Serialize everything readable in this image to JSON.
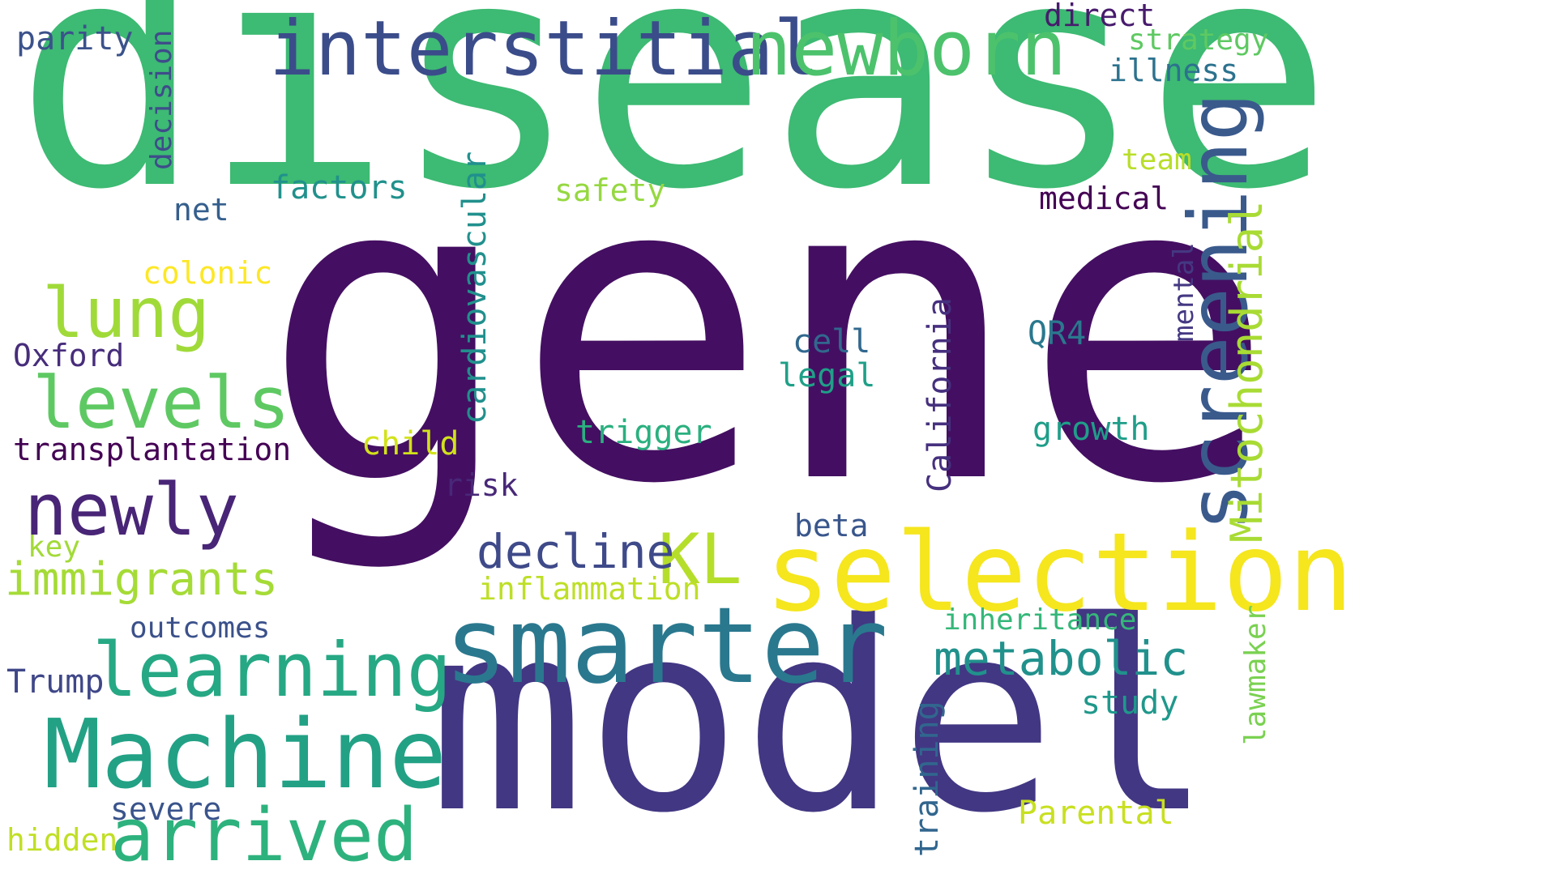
{
  "words": {
    "gene": {
      "text": "gene",
      "color": "#440f62"
    },
    "disease": {
      "text": "disease",
      "color": "#3dba73"
    },
    "model": {
      "text": "model",
      "color": "#423783"
    },
    "selection": {
      "text": "selection",
      "color": "#f5e61e"
    },
    "smarter": {
      "text": "smarter",
      "color": "#2a788e"
    },
    "machine": {
      "text": "Machine",
      "color": "#22a185"
    },
    "interstitial": {
      "text": "interstitial",
      "color": "#3b4c8a"
    },
    "newborn": {
      "text": "newborn",
      "color": "#4cc26c"
    },
    "screening": {
      "text": "screening",
      "color": "#3a5a8c"
    },
    "learning": {
      "text": "learning",
      "color": "#26a884"
    },
    "arrived": {
      "text": "arrived",
      "color": "#2db27d"
    },
    "newly": {
      "text": "newly",
      "color": "#482576"
    },
    "levels": {
      "text": "levels",
      "color": "#5ec962"
    },
    "lung": {
      "text": "lung",
      "color": "#a0da39"
    },
    "kl": {
      "text": "KL",
      "color": "#b5de2b"
    },
    "metabolic": {
      "text": "metabolic",
      "color": "#21918c"
    },
    "mitochondrial": {
      "text": "Mitochondrial",
      "color": "#a8db34"
    },
    "decline": {
      "text": "decline",
      "color": "#3e4a89"
    },
    "immigrants": {
      "text": "immigrants",
      "color": "#a5db36"
    },
    "cardiovascular": {
      "text": "cardiovascular",
      "color": "#21908d"
    },
    "transplantation": {
      "text": "transplantation",
      "color": "#440154"
    },
    "california": {
      "text": "California",
      "color": "#46307e"
    },
    "inflammation": {
      "text": "inflammation",
      "color": "#bddf26"
    },
    "outcomes": {
      "text": "outcomes",
      "color": "#3b518b"
    },
    "inheritance": {
      "text": "inheritance",
      "color": "#35b779"
    },
    "trigger": {
      "text": "trigger",
      "color": "#2ab07f"
    },
    "growth": {
      "text": "growth",
      "color": "#1f9e89"
    },
    "parental": {
      "text": "Parental",
      "color": "#c8e020"
    },
    "study": {
      "text": "study",
      "color": "#1f988b"
    },
    "training": {
      "text": "training",
      "color": "#31668e"
    },
    "lawmaker": {
      "text": "lawmaker",
      "color": "#7ad151"
    },
    "safety": {
      "text": "safety",
      "color": "#95d840"
    },
    "factors": {
      "text": "factors",
      "color": "#21918c"
    },
    "colonic": {
      "text": "colonic",
      "color": "#fde725"
    },
    "medical": {
      "text": "medical",
      "color": "#440154"
    },
    "team": {
      "text": "team",
      "color": "#b8de29"
    },
    "illness": {
      "text": "illness",
      "color": "#2c728e"
    },
    "strategy": {
      "text": "strategy",
      "color": "#5ec962"
    },
    "direct": {
      "text": "direct",
      "color": "#481b6d"
    },
    "parity": {
      "text": "parity",
      "color": "#3b528b"
    },
    "decision": {
      "text": "decision",
      "color": "#3e4c8a"
    },
    "net": {
      "text": "net",
      "color": "#355f8d"
    },
    "oxford": {
      "text": "Oxford",
      "color": "#472d7b"
    },
    "child": {
      "text": "child",
      "color": "#d2e21b"
    },
    "risk": {
      "text": "risk",
      "color": "#482878"
    },
    "cell": {
      "text": "cell",
      "color": "#31688e"
    },
    "legal": {
      "text": "legal",
      "color": "#1fa088"
    },
    "qr4": {
      "text": "QR4",
      "color": "#2a788e"
    },
    "mental": {
      "text": "mental",
      "color": "#453882"
    },
    "beta": {
      "text": "beta",
      "color": "#39568c"
    },
    "key": {
      "text": "key",
      "color": "#a2da37"
    },
    "trump": {
      "text": "Trump",
      "color": "#3f4788"
    },
    "severe": {
      "text": "severe",
      "color": "#3a548c"
    },
    "hidden": {
      "text": "hidden",
      "color": "#c0df25"
    }
  }
}
